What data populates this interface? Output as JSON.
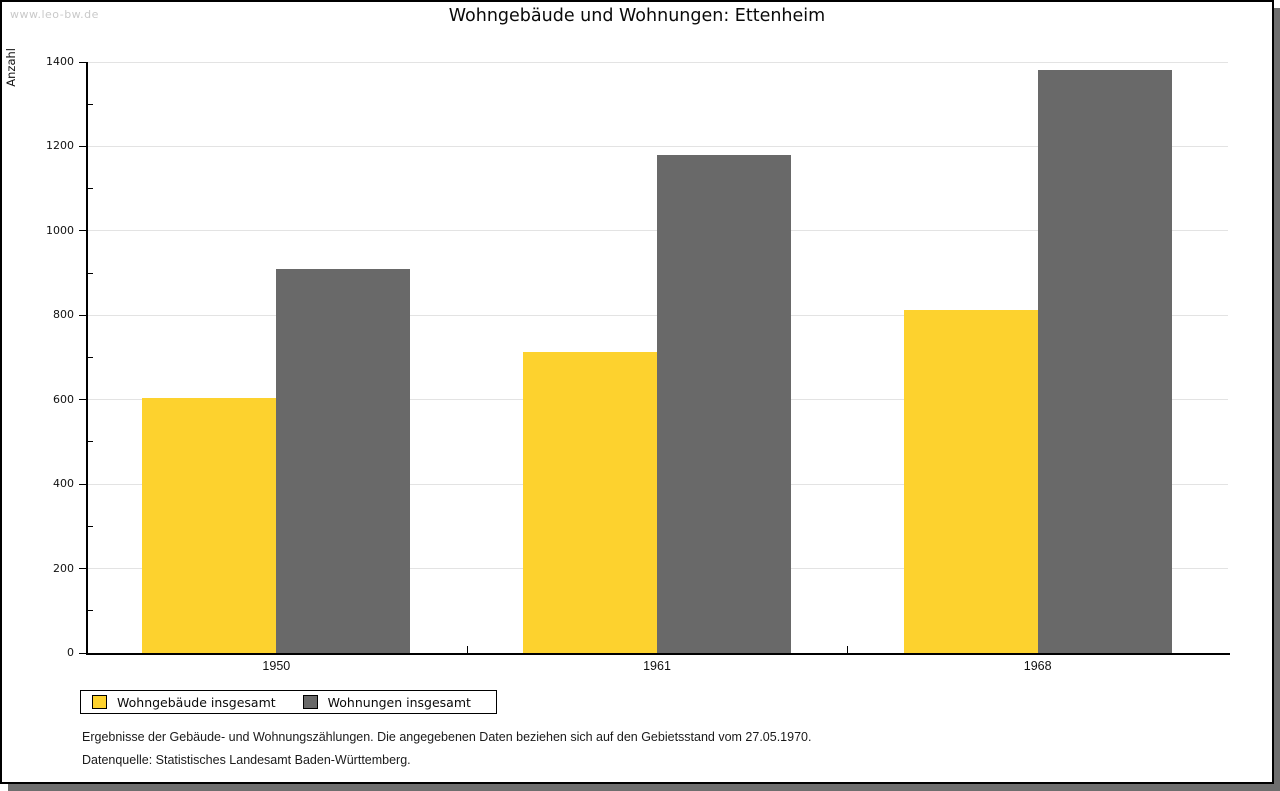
{
  "watermark": "www.leo-bw.de",
  "title": "Wohngebäude und Wohnungen: Ettenheim",
  "y_axis_label": "Anzahl",
  "chart_data": {
    "type": "bar",
    "title": "Wohngebäude und Wohnungen: Ettenheim",
    "xlabel": "",
    "ylabel": "Anzahl",
    "categories": [
      "1950",
      "1961",
      "1968"
    ],
    "series": [
      {
        "name": "Wohngebäude insgesamt",
        "color": "#FDD22E",
        "values": [
          603,
          712,
          813
        ]
      },
      {
        "name": "Wohnungen insgesamt",
        "color": "#696969",
        "values": [
          910,
          1180,
          1380
        ]
      }
    ],
    "ylim": [
      0,
      1400
    ],
    "y_major_step": 200,
    "y_minor_step": 100,
    "grid": true,
    "gridline_color": "#e3e3e3",
    "legend_position": "bottom-left"
  },
  "footer": {
    "line1": "Ergebnisse der Gebäude- und Wohnungszählungen. Die angegebenen Daten beziehen sich auf den Gebietsstand vom 27.05.1970.",
    "line2": "Datenquelle: Statistisches Landesamt Baden-Württemberg."
  }
}
